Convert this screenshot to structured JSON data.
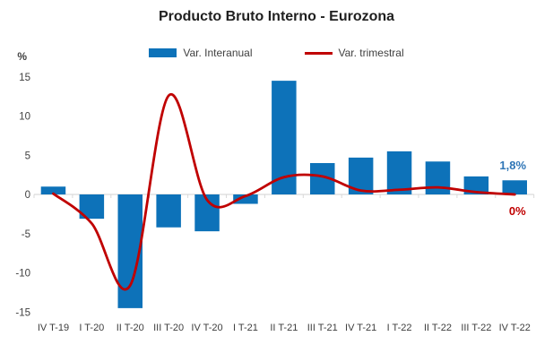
{
  "title": "Producto Bruto Interno - Eurozona",
  "y_axis_unit": "%",
  "legend": {
    "interanual": "Var. Interanual",
    "trimestral": "Var. trimestral"
  },
  "annotations": {
    "last_bar_label": "1,8%",
    "last_line_label": "0%"
  },
  "colors": {
    "bar": "#0d72b9",
    "line": "#c00000",
    "bar_label": "#2e75b6",
    "line_label": "#c00000",
    "axis_text": "#404040",
    "axis_line": "#d9d9d9"
  },
  "chart_data": {
    "type": "bar",
    "subtype": "bar+line combo",
    "title": "Producto Bruto Interno - Eurozona",
    "xlabel": "",
    "ylabel": "%",
    "ylim": [
      -15,
      15
    ],
    "yticks": [
      15,
      10,
      5,
      0,
      -5,
      -10,
      -15
    ],
    "grid": false,
    "legend_position": "top",
    "categories": [
      "IV T-19",
      "I T-20",
      "II T-20",
      "III T-20",
      "IV T-20",
      "I T-21",
      "II T-21",
      "III T-21",
      "IV T-21",
      "I T-22",
      "II T-22",
      "III T-22",
      "IV T-22"
    ],
    "series": [
      {
        "name": "Var. Interanual",
        "type": "bar",
        "color": "#0d72b9",
        "values": [
          1.0,
          -3.1,
          -14.5,
          -4.2,
          -4.7,
          -1.2,
          14.5,
          4.0,
          4.7,
          5.5,
          4.2,
          2.3,
          1.8
        ]
      },
      {
        "name": "Var. trimestral",
        "type": "line",
        "color": "#c00000",
        "smooth": true,
        "values": [
          0.1,
          -3.7,
          -11.6,
          12.6,
          -0.7,
          -0.2,
          2.2,
          2.3,
          0.5,
          0.6,
          0.9,
          0.3,
          0.0
        ]
      }
    ]
  }
}
